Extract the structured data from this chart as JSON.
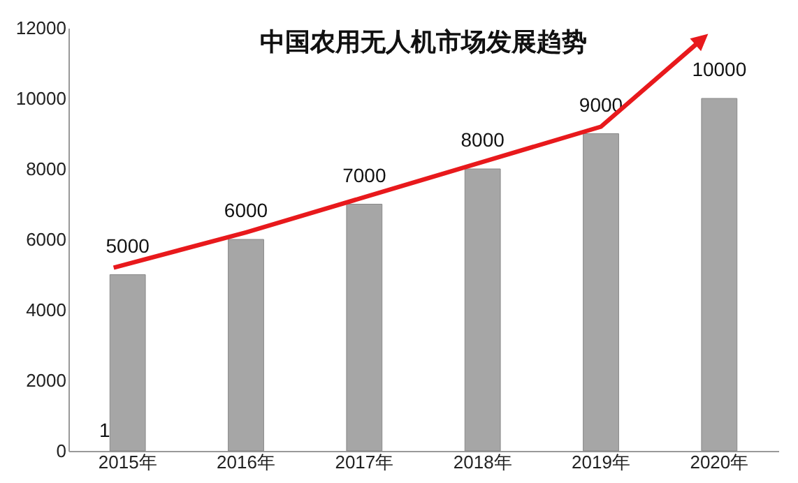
{
  "chart_data": {
    "type": "bar",
    "title": "中国农用无人机市场发展趋势",
    "categories": [
      "2015年",
      "2016年",
      "2017年",
      "2018年",
      "2019年",
      "2020年"
    ],
    "values": [
      5000,
      6000,
      7000,
      8000,
      9000,
      10000
    ],
    "color": "#a6a6a6",
    "ylim": [
      0,
      12000
    ],
    "yticks": [
      0,
      2000,
      4000,
      6000,
      8000,
      10000,
      12000
    ],
    "grid": false,
    "data_labels": true,
    "annotations": [
      "1"
    ]
  }
}
